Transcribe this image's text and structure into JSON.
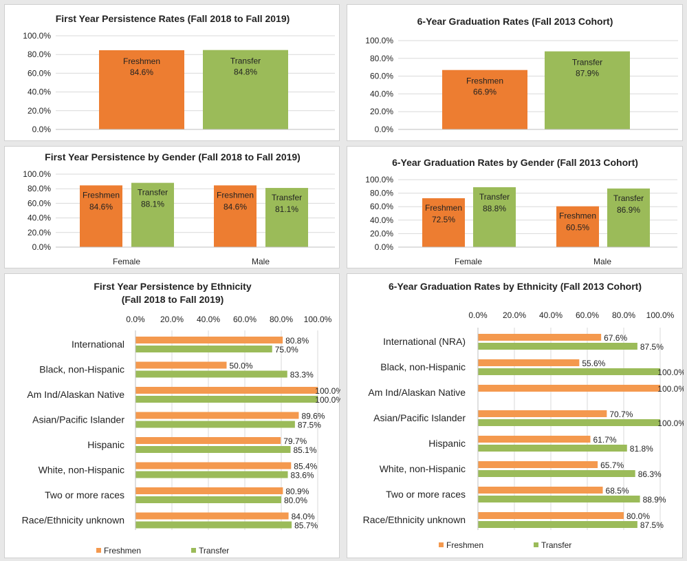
{
  "colors": {
    "freshmen": "#ED7D31",
    "transfer": "#9BBB59",
    "freshmen_light": "#F4994E"
  },
  "chart_data": [
    {
      "id": "c1",
      "type": "bar",
      "title": "First Year Persistence Rates (Fall 2018 to Fall 2019)",
      "series_names": [
        "Freshmen",
        "Transfer"
      ],
      "values": [
        84.6,
        84.8
      ],
      "value_labels": [
        "84.6%",
        "84.8%"
      ],
      "ylim": [
        0,
        100
      ],
      "y_ticks": [
        "0.0%",
        "20.0%",
        "40.0%",
        "60.0%",
        "80.0%",
        "100.0%"
      ]
    },
    {
      "id": "c2",
      "type": "bar",
      "title": "6-Year Graduation Rates (Fall 2013 Cohort)",
      "series_names": [
        "Freshmen",
        "Transfer"
      ],
      "values": [
        66.9,
        87.9
      ],
      "value_labels": [
        "66.9%",
        "87.9%"
      ],
      "ylim": [
        0,
        100
      ],
      "y_ticks": [
        "0.0%",
        "20.0%",
        "40.0%",
        "60.0%",
        "80.0%",
        "100.0%"
      ]
    },
    {
      "id": "c3",
      "type": "bar",
      "title": "First Year Persistence by Gender (Fall 2018 to Fall 2019)",
      "categories": [
        "Female",
        "Male"
      ],
      "series": [
        {
          "name": "Freshmen",
          "values": [
            84.6,
            84.6
          ],
          "labels": [
            "84.6%",
            "84.6%"
          ]
        },
        {
          "name": "Transfer",
          "values": [
            88.1,
            81.1
          ],
          "labels": [
            "88.1%",
            "81.1%"
          ]
        }
      ],
      "ylim": [
        0,
        100
      ],
      "y_ticks": [
        "0.0%",
        "20.0%",
        "40.0%",
        "60.0%",
        "80.0%",
        "100.0%"
      ]
    },
    {
      "id": "c4",
      "type": "bar",
      "title": "6-Year Graduation Rates by Gender (Fall 2013 Cohort)",
      "categories": [
        "Female",
        "Male"
      ],
      "series": [
        {
          "name": "Freshmen",
          "values": [
            72.5,
            60.5
          ],
          "labels": [
            "72.5%",
            "60.5%"
          ]
        },
        {
          "name": "Transfer",
          "values": [
            88.8,
            86.9
          ],
          "labels": [
            "88.8%",
            "86.9%"
          ]
        }
      ],
      "ylim": [
        0,
        100
      ],
      "y_ticks": [
        "0.0%",
        "20.0%",
        "40.0%",
        "60.0%",
        "80.0%",
        "100.0%"
      ]
    },
    {
      "id": "c5",
      "type": "bar",
      "orientation": "horizontal",
      "title": [
        "First Year Persistence by Ethnicity",
        "(Fall 2018 to Fall 2019)"
      ],
      "categories": [
        "International",
        "Black, non-Hispanic",
        "Am Ind/Alaskan Native",
        "Asian/Pacific Islander",
        "Hispanic",
        "White, non-Hispanic",
        "Two or more races",
        "Race/Ethnicity unknown"
      ],
      "series": [
        {
          "name": "Freshmen",
          "values": [
            80.8,
            50.0,
            100.0,
            89.6,
            79.7,
            85.4,
            80.9,
            84.0
          ],
          "labels": [
            "80.8%",
            "50.0%",
            "100.0%",
            "89.6%",
            "79.7%",
            "85.4%",
            "80.9%",
            "84.0%"
          ]
        },
        {
          "name": "Transfer",
          "values": [
            75.0,
            83.3,
            100.0,
            87.5,
            85.1,
            83.6,
            80.0,
            85.7
          ],
          "labels": [
            "75.0%",
            "83.3%",
            "100.0%",
            "87.5%",
            "85.1%",
            "83.6%",
            "80.0%",
            "85.7%"
          ]
        }
      ],
      "xlim": [
        0,
        100
      ],
      "x_ticks": [
        "0.0%",
        "20.0%",
        "40.0%",
        "60.0%",
        "80.0%",
        "100.0%"
      ],
      "legend": "bottom"
    },
    {
      "id": "c6",
      "type": "bar",
      "orientation": "horizontal",
      "title": [
        "6-Year Graduation Rates by Ethnicity (Fall 2013 Cohort)"
      ],
      "categories": [
        "International (NRA)",
        "Black, non-Hispanic",
        "Am Ind/Alaskan Native",
        "Asian/Pacific Islander",
        "Hispanic",
        "White, non-Hispanic",
        "Two or more races",
        "Race/Ethnicity unknown"
      ],
      "series": [
        {
          "name": "Freshmen",
          "values": [
            67.6,
            55.6,
            100.0,
            70.7,
            61.7,
            65.7,
            68.5,
            80.0
          ],
          "labels": [
            "67.6%",
            "55.6%",
            "100.0%",
            "70.7%",
            "61.7%",
            "65.7%",
            "68.5%",
            "80.0%"
          ]
        },
        {
          "name": "Transfer",
          "values": [
            87.5,
            100.0,
            null,
            100.0,
            81.8,
            86.3,
            88.9,
            87.5
          ],
          "labels": [
            "87.5%",
            "100.0%",
            "",
            "100.0%",
            "81.8%",
            "86.3%",
            "88.9%",
            "87.5%"
          ]
        }
      ],
      "xlim": [
        0,
        100
      ],
      "x_ticks": [
        "0.0%",
        "20.0%",
        "40.0%",
        "60.0%",
        "80.0%",
        "100.0%"
      ],
      "legend": "bottom"
    }
  ]
}
